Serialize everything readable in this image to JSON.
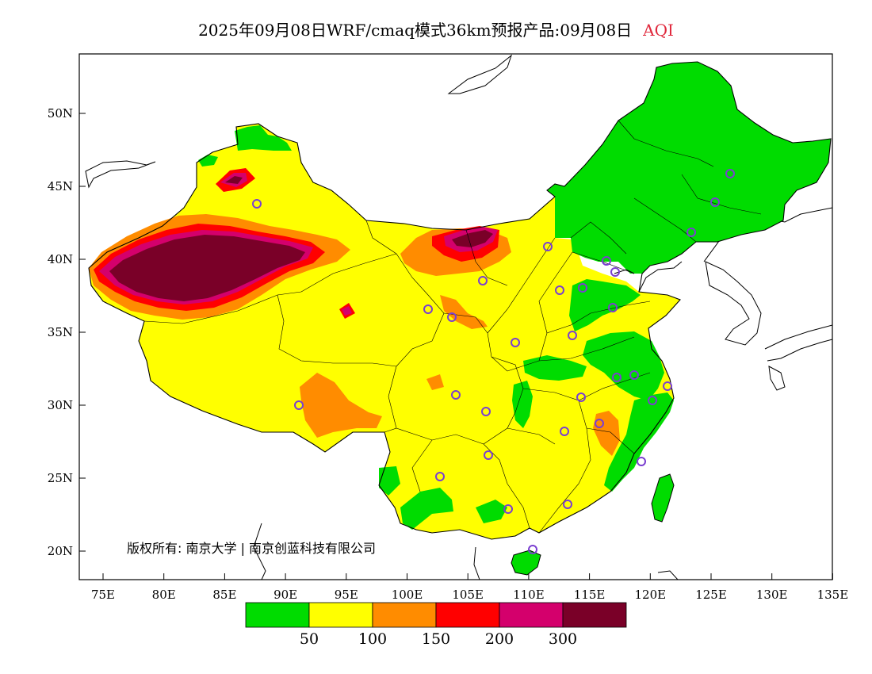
{
  "title": {
    "main": "2025年09月08日WRF/cmaq模式36km预报产品:09月08日",
    "variable": "AQI"
  },
  "map": {
    "region": "China",
    "lon_ticks": [
      "75E",
      "80E",
      "85E",
      "90E",
      "95E",
      "100E",
      "105E",
      "110E",
      "115E",
      "120E",
      "125E",
      "130E",
      "135E"
    ],
    "lat_ticks": [
      "20N",
      "25N",
      "30N",
      "35N",
      "40N",
      "45N",
      "50N"
    ],
    "copyright": "版权所有: 南京大学 | 南京创蓝科技有限公司"
  },
  "legend": {
    "colors": [
      "#00dc00",
      "#ffff00",
      "#ff8c00",
      "#ff0000",
      "#d4006c",
      "#7a0028"
    ],
    "labels": [
      "50",
      "100",
      "150",
      "200",
      "300"
    ]
  },
  "colors": {
    "good": "#00dc00",
    "moderate": "#ffff00",
    "usg": "#ff8c00",
    "unhealthy": "#ff0000",
    "very_unhealthy": "#d4006c",
    "hazardous": "#7a0028",
    "station_marker": "#7a3fd0"
  }
}
